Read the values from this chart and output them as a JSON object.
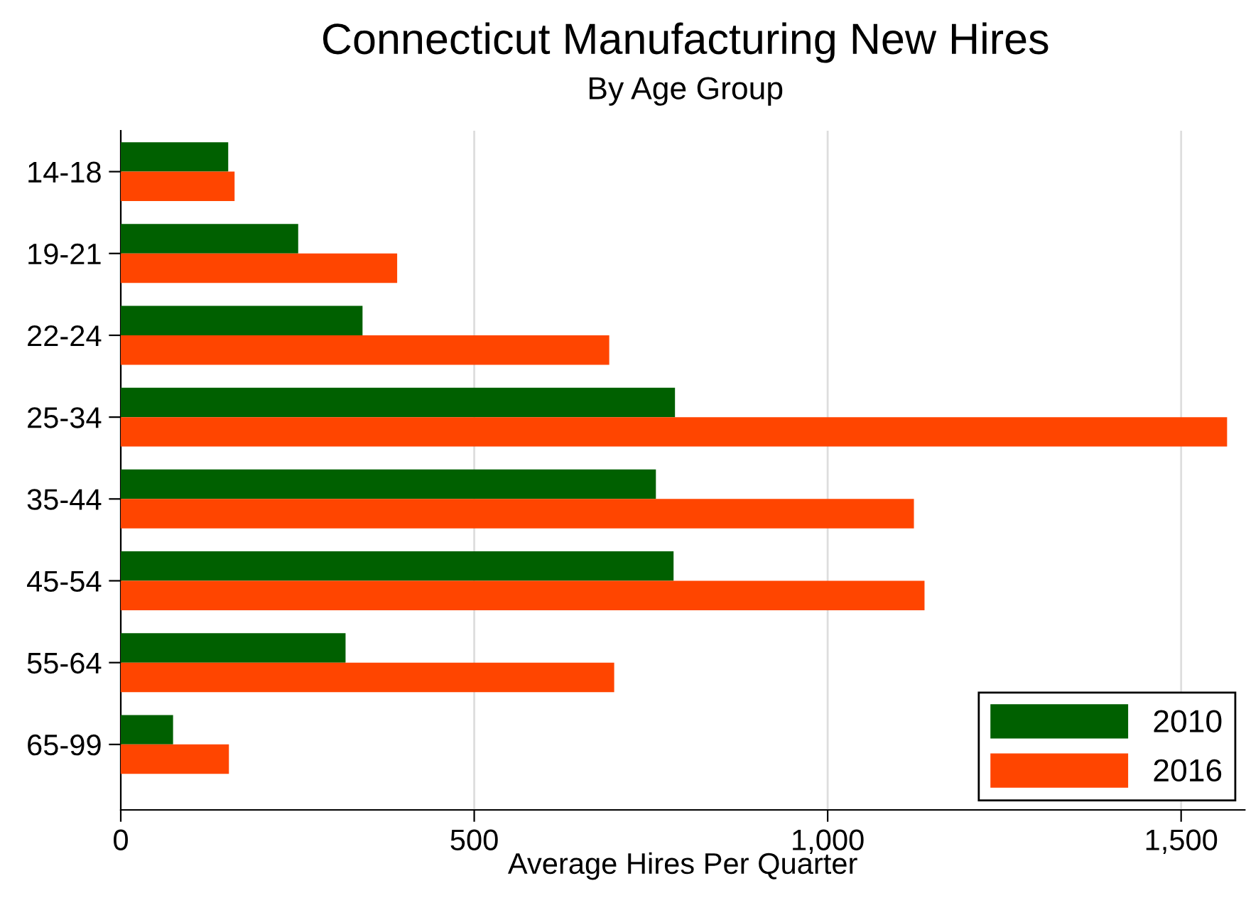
{
  "chart_data": {
    "type": "bar",
    "orientation": "horizontal",
    "title": "Connecticut Manufacturing New Hires",
    "subtitle": "By Age Group",
    "xlabel": "Average Hires Per Quarter",
    "categories": [
      "14-18",
      "19-21",
      "22-24",
      "25-34",
      "35-44",
      "45-54",
      "55-64",
      "65-99"
    ],
    "series": [
      {
        "name": "2010",
        "color": "#006000",
        "values": [
          152,
          251,
          342,
          784,
          757,
          782,
          318,
          74
        ]
      },
      {
        "name": "2016",
        "color": "#ff4500",
        "values": [
          161,
          391,
          691,
          1565,
          1122,
          1137,
          698,
          153
        ]
      }
    ],
    "xlim": [
      0,
      1590
    ],
    "xticks": [
      0,
      500,
      {
        "value": 1000,
        "label": "1,000"
      },
      {
        "value": 1500,
        "label": "1,500"
      }
    ],
    "grid": "x",
    "legend": "bottom right"
  }
}
